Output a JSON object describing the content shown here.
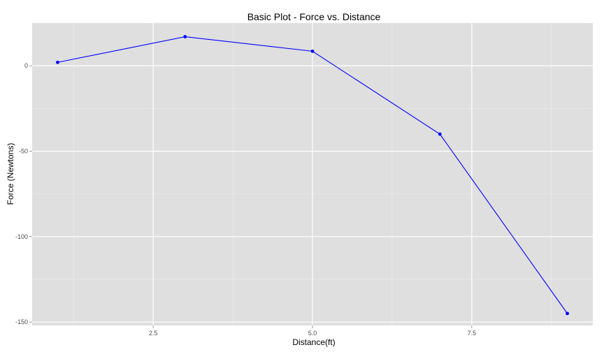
{
  "chart_data": {
    "type": "line",
    "title": "Basic Plot - Force vs. Distance",
    "xlabel": "Distance(ft)",
    "ylabel": "Force (Newtons)",
    "x": [
      1,
      3,
      5,
      7,
      9
    ],
    "series": [
      {
        "name": "",
        "values": [
          2,
          17,
          8.5,
          -40,
          -145
        ]
      }
    ],
    "xlim": [
      0.6,
      9.4
    ],
    "ylim": [
      -152,
      25
    ],
    "xticks": [
      2.5,
      5.0,
      7.5
    ],
    "xtick_labels": [
      "2.5",
      "5.0",
      "7.5"
    ],
    "yticks": [
      0,
      -50,
      -100,
      -150
    ],
    "ytick_labels": [
      "0",
      "-50",
      "-100",
      "-150"
    ],
    "grid": true,
    "legend": "none",
    "colors": {
      "panel": "#dfdfdf",
      "grid_major": "#ffffff",
      "grid_minor": "#ebebeb",
      "line": "#0000ff",
      "point": "#0000ff"
    }
  }
}
